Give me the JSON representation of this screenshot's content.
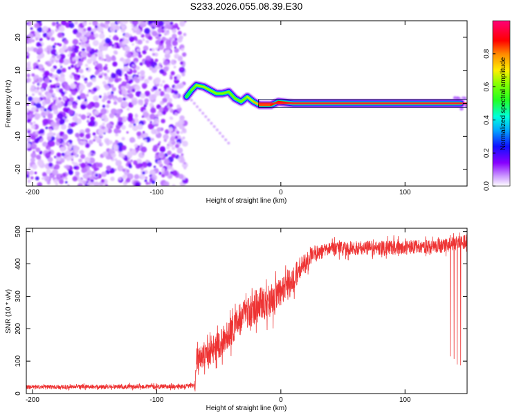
{
  "figure": {
    "title": "S233.2026.055.08.39.E30"
  },
  "chart_data": [
    {
      "type": "heatmap",
      "name": "spectrogram",
      "xlabel": "Height of straight line (km)",
      "ylabel": "Frequency (Hz)",
      "xlim": [
        -205,
        150
      ],
      "ylim": [
        -25,
        25
      ],
      "xticks": [
        -200,
        -100,
        0,
        100
      ],
      "yticks": [
        -20,
        -10,
        0,
        10,
        20
      ],
      "colorbar": {
        "label": "Normalized spectral amplitude",
        "range": [
          0,
          1
        ],
        "ticks": [
          0.0,
          0.2,
          0.4,
          0.6,
          0.8
        ]
      },
      "noise_region_x": [
        -205,
        -77
      ],
      "ridge": [
        {
          "x": -76,
          "y": 2,
          "amp": 0.45
        },
        {
          "x": -72,
          "y": 4,
          "amp": 0.55
        },
        {
          "x": -68,
          "y": 5.5,
          "amp": 0.65
        },
        {
          "x": -62,
          "y": 5,
          "amp": 0.62
        },
        {
          "x": -57,
          "y": 4,
          "amp": 0.65
        },
        {
          "x": -52,
          "y": 3,
          "amp": 0.6
        },
        {
          "x": -47,
          "y": 3,
          "amp": 0.62
        },
        {
          "x": -42,
          "y": 3.5,
          "amp": 0.6
        },
        {
          "x": -37,
          "y": 1.5,
          "amp": 0.6
        },
        {
          "x": -32,
          "y": 0.5,
          "amp": 0.6
        },
        {
          "x": -27,
          "y": 2,
          "amp": 0.62
        },
        {
          "x": -22,
          "y": 0.5,
          "amp": 0.68
        },
        {
          "x": -17,
          "y": -0.5,
          "amp": 0.82
        },
        {
          "x": -8,
          "y": -0.5,
          "amp": 0.85
        },
        {
          "x": -2,
          "y": 0.5,
          "amp": 0.88
        },
        {
          "x": 10,
          "y": 0,
          "amp": 0.9
        },
        {
          "x": 145,
          "y": 0,
          "amp": 0.95
        }
      ],
      "side_feature_x": [
        140,
        150
      ]
    },
    {
      "type": "line",
      "name": "snr",
      "xlabel": "Height of straight line (km)",
      "ylabel": "SNR (10 * v/v)",
      "xlim": [
        -205,
        150
      ],
      "ylim": [
        0,
        510
      ],
      "xticks": [
        -200,
        -100,
        0,
        100
      ],
      "yticks": [
        0,
        100,
        200,
        300,
        400,
        500
      ],
      "color": "#ee3333",
      "envelope": [
        {
          "x": -205,
          "y": 20
        },
        {
          "x": -80,
          "y": 22
        },
        {
          "x": -69,
          "y": 25
        },
        {
          "x": -68,
          "y": 110
        },
        {
          "x": -55,
          "y": 130
        },
        {
          "x": -45,
          "y": 170
        },
        {
          "x": -35,
          "y": 220
        },
        {
          "x": -25,
          "y": 260
        },
        {
          "x": -15,
          "y": 280
        },
        {
          "x": -5,
          "y": 290
        },
        {
          "x": 5,
          "y": 330
        },
        {
          "x": 15,
          "y": 380
        },
        {
          "x": 25,
          "y": 430
        },
        {
          "x": 40,
          "y": 445
        },
        {
          "x": 70,
          "y": 450
        },
        {
          "x": 100,
          "y": 450
        },
        {
          "x": 130,
          "y": 455
        },
        {
          "x": 150,
          "y": 470
        }
      ],
      "noise": [
        {
          "x": -205,
          "y": 6
        },
        {
          "x": -70,
          "y": 7
        },
        {
          "x": -68,
          "y": 35
        },
        {
          "x": -20,
          "y": 55
        },
        {
          "x": 10,
          "y": 45
        },
        {
          "x": 30,
          "y": 22
        },
        {
          "x": 150,
          "y": 22
        }
      ],
      "dropouts": {
        "x_range": [
          135,
          145
        ],
        "min": 85
      }
    }
  ]
}
